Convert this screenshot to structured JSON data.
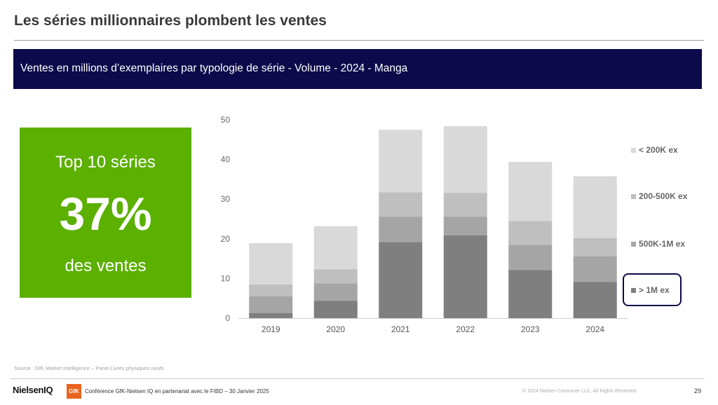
{
  "slide": {
    "title": "Les séries millionnaires plombent les ventes",
    "banner": "Ventes en millions d’exemplaires par typologie de série - Volume - 2024 - Manga"
  },
  "kpi": {
    "top": "Top 10 séries",
    "value": "37%",
    "bottom": "des ventes",
    "color": "#5bb000"
  },
  "chart_data": {
    "type": "bar",
    "stacked": true,
    "categories": [
      "2019",
      "2020",
      "2021",
      "2022",
      "2023",
      "2024"
    ],
    "ylim": [
      0,
      50
    ],
    "yticks": [
      0,
      10,
      20,
      30,
      40,
      50
    ],
    "grid": false,
    "legend_position": "right",
    "series": [
      {
        "name": "> 1M ex",
        "color": "#7f7f7f",
        "values": [
          1.3,
          4.4,
          19.2,
          20.9,
          12.1,
          9.1
        ]
      },
      {
        "name": "500K-1M ex",
        "color": "#a5a5a5",
        "values": [
          4.2,
          4.4,
          6.4,
          4.7,
          6.4,
          6.5
        ]
      },
      {
        "name": "200-500K ex",
        "color": "#bfbfbf",
        "values": [
          3.0,
          3.5,
          6.1,
          6.0,
          6.0,
          4.6
        ]
      },
      {
        "name": "< 200K ex",
        "color": "#d9d9d9",
        "values": [
          10.4,
          10.9,
          15.8,
          16.8,
          14.9,
          15.6
        ]
      }
    ],
    "highlighted_series": "> 1M ex"
  },
  "footer": {
    "source": "Source : GfK Market Intelligence – Panel Livres physiques neufs",
    "logo_niq": "NielsenIQ",
    "logo_gfk": "GfK",
    "conference": "Conférence GfK-Nielsen IQ en partenariat avec le FIBD – 30 Janvier 2025",
    "copyright": "© 2024 Nielsen Consumer LLC. All Rights Reserved.",
    "page": "29"
  },
  "colors": {
    "banner_bg": "#0c0a4a",
    "highlight_border": "#0c0a4a"
  }
}
